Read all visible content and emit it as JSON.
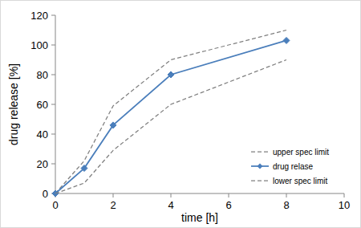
{
  "chart_data": {
    "type": "line",
    "x_label": "time [h]",
    "y_label": "drug release [%]",
    "x": [
      0,
      1,
      2,
      4,
      8
    ],
    "series": [
      {
        "name": "upper spec limit",
        "color": "#808080",
        "line_style": "dashed",
        "marker": "none",
        "values": [
          0,
          22,
          59,
          90,
          110
        ]
      },
      {
        "name": "drug relase",
        "color": "#4a7ebb",
        "line_style": "solid",
        "marker": "diamond",
        "values": [
          0,
          17,
          46,
          80,
          103
        ]
      },
      {
        "name": "lower spec limit",
        "color": "#808080",
        "line_style": "dashed",
        "marker": "none",
        "values": [
          0,
          7,
          29,
          60,
          90
        ]
      }
    ],
    "xlim": [
      0,
      10
    ],
    "xticks": [
      0,
      2,
      4,
      6,
      8,
      10
    ],
    "ylim": [
      0,
      120
    ],
    "yticks": [
      0,
      20,
      40,
      60,
      80,
      100,
      120
    ],
    "grid": false,
    "legend": "right"
  }
}
